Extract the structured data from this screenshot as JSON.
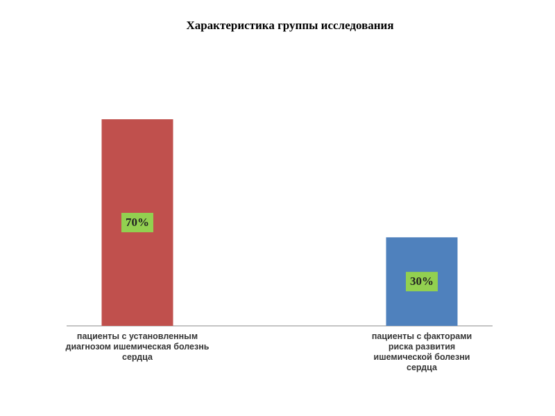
{
  "chart_data": {
    "type": "bar",
    "title": "Характеристика  группы  исследования",
    "categories": [
      "пациенты с установленным диагнозом ишемическая болезнь сердца",
      "пациенты с факторами риска развития ишемической болезни сердца"
    ],
    "values": [
      70,
      30
    ],
    "value_labels": [
      "70%",
      "30%"
    ],
    "colors": [
      "#c0504d",
      "#4f81bd"
    ],
    "label_background": "#92d050"
  }
}
